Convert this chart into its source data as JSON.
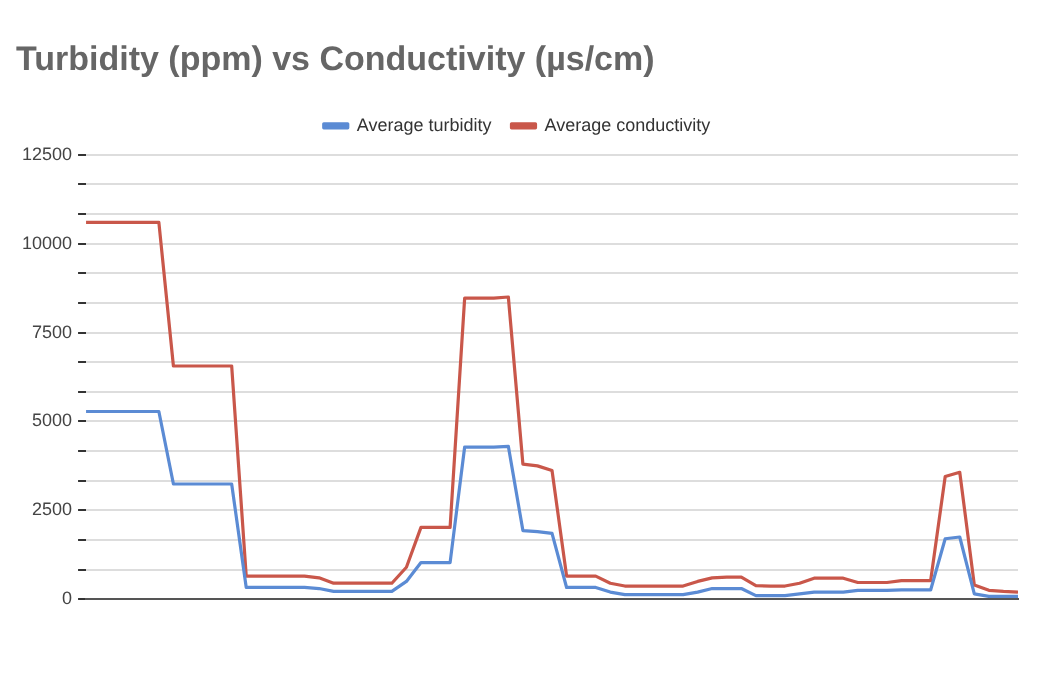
{
  "chart_data": {
    "type": "line",
    "title": "Turbidity (ppm) vs Conductivity (µs/cm)",
    "categories": [
      null,
      null,
      null,
      null,
      null,
      null,
      null,
      null,
      null,
      null,
      null,
      null,
      null,
      null,
      null,
      null,
      null,
      null,
      null,
      null,
      null,
      null,
      null,
      null,
      null,
      null,
      null,
      null,
      null,
      null,
      null,
      null,
      null,
      null,
      null,
      null,
      null,
      null,
      null,
      null,
      null,
      null,
      null,
      null,
      null,
      null,
      null,
      null,
      null,
      null,
      null,
      null,
      null,
      null,
      null,
      null,
      null,
      null,
      null,
      null,
      null,
      null,
      null,
      null,
      null
    ],
    "series": [
      {
        "name": "Average turbidity",
        "color": "#5b8bd4",
        "values": [
          5280,
          5280,
          5280,
          5280,
          5280,
          5280,
          3240,
          3240,
          3240,
          3240,
          3240,
          330,
          330,
          330,
          330,
          330,
          300,
          220,
          220,
          220,
          220,
          220,
          500,
          1030,
          1030,
          1030,
          4280,
          4280,
          4280,
          4300,
          1930,
          1900,
          1850,
          330,
          330,
          330,
          200,
          130,
          130,
          130,
          130,
          130,
          200,
          300,
          300,
          300,
          100,
          100,
          100,
          150,
          200,
          200,
          200,
          250,
          250,
          250,
          260,
          260,
          260,
          1700,
          1750,
          150,
          80,
          80,
          80
        ]
      },
      {
        "name": "Average conductivity",
        "color": "#c9574a",
        "values": [
          10600,
          10600,
          10600,
          10600,
          10600,
          10600,
          6560,
          6560,
          6560,
          6560,
          6560,
          650,
          650,
          650,
          650,
          650,
          600,
          450,
          450,
          450,
          450,
          450,
          900,
          2020,
          2020,
          2020,
          8470,
          8470,
          8470,
          8500,
          3800,
          3750,
          3620,
          650,
          650,
          650,
          450,
          370,
          370,
          370,
          370,
          370,
          500,
          600,
          620,
          620,
          380,
          370,
          370,
          450,
          590,
          590,
          590,
          470,
          470,
          470,
          520,
          520,
          520,
          3450,
          3570,
          400,
          250,
          220,
          200
        ]
      }
    ],
    "ylim": [
      0,
      12500
    ],
    "yticks": [
      0,
      {
        "value": 833.33,
        "label": null
      },
      {
        "value": 1666.67,
        "label": null
      },
      2500,
      {
        "value": 3333.33,
        "label": null
      },
      {
        "value": 4166.67,
        "label": null
      },
      5000,
      {
        "value": 5833.33,
        "label": null
      },
      {
        "value": 6666.67,
        "label": null
      },
      7500,
      {
        "value": 8333.33,
        "label": null
      },
      {
        "value": 9166.67,
        "label": null
      },
      10000,
      {
        "value": 10833.33,
        "label": null
      },
      {
        "value": 11666.67,
        "label": null
      },
      12500
    ],
    "grid": "y",
    "legend": "top",
    "marker": "none",
    "line_style": "solid"
  }
}
